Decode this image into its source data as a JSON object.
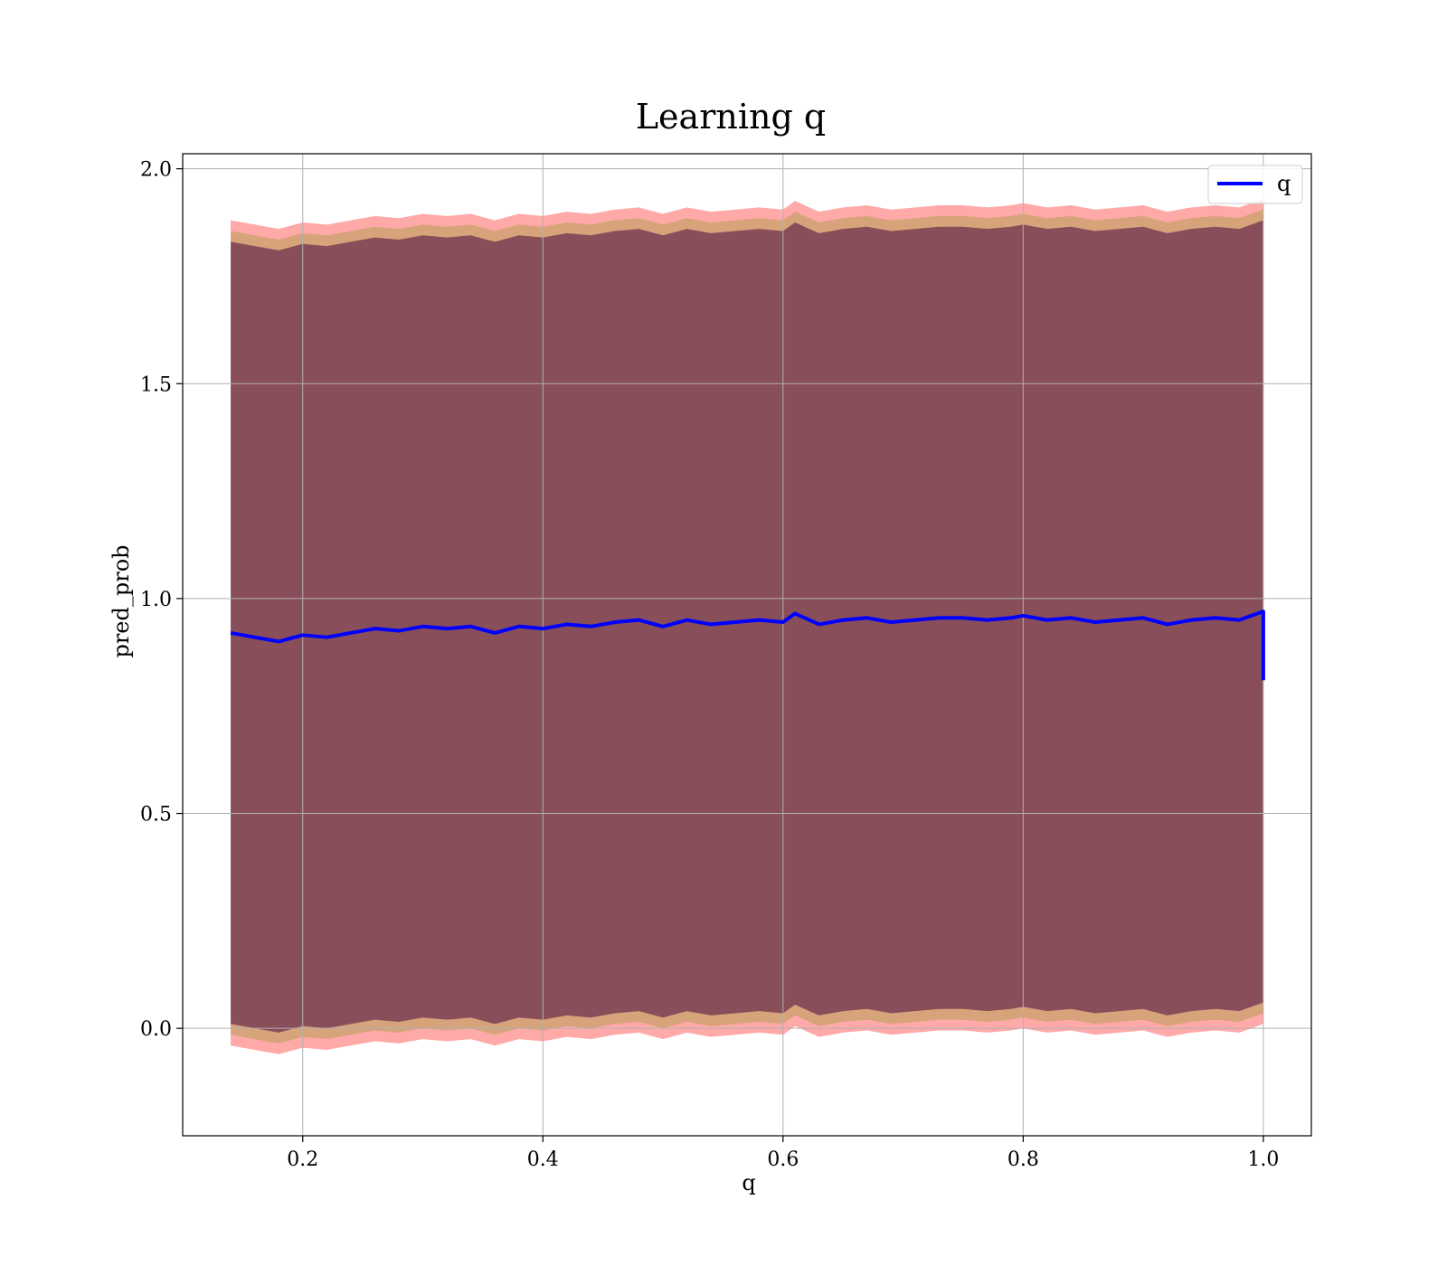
{
  "chart_data": {
    "type": "line",
    "title": "Learning q",
    "xlabel": "q",
    "ylabel": "pred_prob",
    "xlim": [
      0.1,
      1.04
    ],
    "ylim": [
      -0.25,
      2.035
    ],
    "xticks": [
      0.2,
      0.4,
      0.6,
      0.8,
      1.0
    ],
    "xtick_labels": [
      "0.2",
      "0.4",
      "0.6",
      "0.8",
      "1.0"
    ],
    "yticks": [
      0.0,
      0.5,
      1.0,
      1.5,
      2.0
    ],
    "ytick_labels": [
      "0.0",
      "0.5",
      "1.0",
      "1.5",
      "2.0"
    ],
    "grid": true,
    "legend": {
      "position": "top-right",
      "entries": [
        "q"
      ]
    },
    "colors": {
      "line": "#0000ff",
      "band_outer": "#ff6f6f",
      "band_mid": "#c9a26b",
      "band_inner": "#7a3f55",
      "grid": "#b0b0b0"
    },
    "series": [
      {
        "name": "q",
        "x": [
          0.14,
          0.16,
          0.18,
          0.2,
          0.22,
          0.24,
          0.26,
          0.28,
          0.3,
          0.32,
          0.34,
          0.36,
          0.38,
          0.4,
          0.42,
          0.44,
          0.46,
          0.48,
          0.5,
          0.52,
          0.54,
          0.56,
          0.58,
          0.6,
          0.61,
          0.63,
          0.65,
          0.67,
          0.69,
          0.71,
          0.73,
          0.75,
          0.77,
          0.79,
          0.8,
          0.82,
          0.84,
          0.86,
          0.88,
          0.9,
          0.92,
          0.94,
          0.96,
          0.98,
          1.0,
          1.0
        ],
        "y": [
          0.92,
          0.91,
          0.9,
          0.915,
          0.91,
          0.92,
          0.93,
          0.925,
          0.935,
          0.93,
          0.935,
          0.92,
          0.935,
          0.93,
          0.94,
          0.935,
          0.945,
          0.95,
          0.935,
          0.95,
          0.94,
          0.945,
          0.95,
          0.945,
          0.965,
          0.94,
          0.95,
          0.955,
          0.945,
          0.95,
          0.955,
          0.955,
          0.95,
          0.955,
          0.96,
          0.95,
          0.955,
          0.945,
          0.95,
          0.955,
          0.94,
          0.95,
          0.955,
          0.95,
          0.97,
          0.81
        ]
      }
    ],
    "bands": [
      {
        "lower_offset": -0.96,
        "upper_offset": 0.96
      },
      {
        "lower_offset": -0.935,
        "upper_offset": 0.935
      },
      {
        "lower_offset": -0.91,
        "upper_offset": 0.91
      }
    ]
  }
}
